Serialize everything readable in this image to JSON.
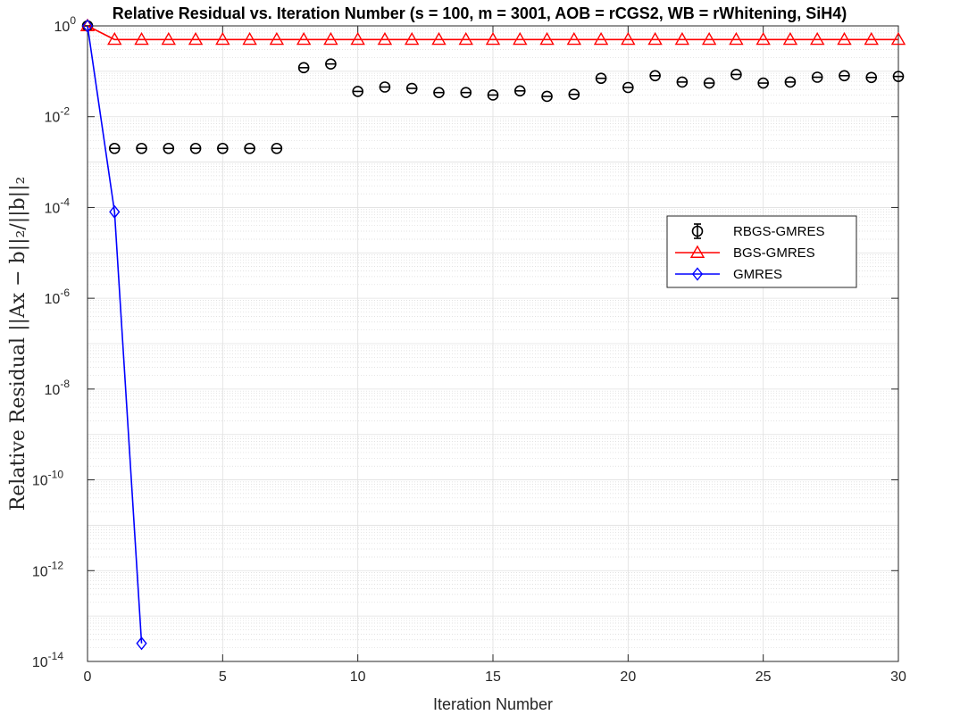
{
  "chart_data": {
    "type": "line",
    "title": "Relative Residual vs. Iteration Number (s = 100, m = 3001, AOB = rCGS2, WB = rWhitening, SiH4)",
    "xlabel": "Iteration Number",
    "ylabel": "Relative Residual ||Ax − b||₂/||b||₂",
    "xlim": [
      0,
      30
    ],
    "ylim": [
      1e-14,
      1
    ],
    "yscale": "log",
    "grid": true,
    "minor_grid": true,
    "legend_position": "right",
    "x_ticks": [
      "0",
      "5",
      "10",
      "15",
      "20",
      "25",
      "30"
    ],
    "y_ticks": [
      {
        "base": "10",
        "exp": "0"
      },
      {
        "base": "10",
        "exp": "-2"
      },
      {
        "base": "10",
        "exp": "-4"
      },
      {
        "base": "10",
        "exp": "-6"
      },
      {
        "base": "10",
        "exp": "-8"
      },
      {
        "base": "10",
        "exp": "-10"
      },
      {
        "base": "10",
        "exp": "-12"
      },
      {
        "base": "10",
        "exp": "-14"
      }
    ],
    "series": [
      {
        "name": "RBGS-GMRES",
        "color": "#000000",
        "marker": "circle",
        "line": false,
        "errorbar": true,
        "x": [
          0,
          1,
          2,
          3,
          4,
          5,
          6,
          7,
          8,
          9,
          10,
          11,
          12,
          13,
          14,
          15,
          16,
          17,
          18,
          19,
          20,
          21,
          22,
          23,
          24,
          25,
          26,
          27,
          28,
          29,
          30
        ],
        "y": [
          1,
          0.002,
          0.002,
          0.002,
          0.002,
          0.002,
          0.002,
          0.002,
          0.12,
          0.145,
          0.036,
          0.045,
          0.042,
          0.034,
          0.034,
          0.03,
          0.037,
          0.028,
          0.031,
          0.07,
          0.044,
          0.08,
          0.058,
          0.055,
          0.085,
          0.055,
          0.058,
          0.074,
          0.08,
          0.073,
          0.077
        ]
      },
      {
        "name": "BGS-GMRES",
        "color": "#ff0000",
        "marker": "triangle",
        "line": true,
        "x": [
          0,
          1,
          2,
          3,
          4,
          5,
          6,
          7,
          8,
          9,
          10,
          11,
          12,
          13,
          14,
          15,
          16,
          17,
          18,
          19,
          20,
          21,
          22,
          23,
          24,
          25,
          26,
          27,
          28,
          29,
          30
        ],
        "y": [
          1,
          0.5,
          0.5,
          0.5,
          0.5,
          0.5,
          0.5,
          0.5,
          0.5,
          0.5,
          0.5,
          0.5,
          0.5,
          0.5,
          0.5,
          0.5,
          0.5,
          0.5,
          0.5,
          0.5,
          0.5,
          0.5,
          0.5,
          0.5,
          0.5,
          0.5,
          0.5,
          0.5,
          0.5,
          0.5,
          0.5
        ]
      },
      {
        "name": "GMRES",
        "color": "#0000ff",
        "marker": "diamond",
        "line": true,
        "x": [
          0,
          1,
          2
        ],
        "y": [
          1,
          8e-05,
          2.5e-14
        ]
      }
    ]
  }
}
